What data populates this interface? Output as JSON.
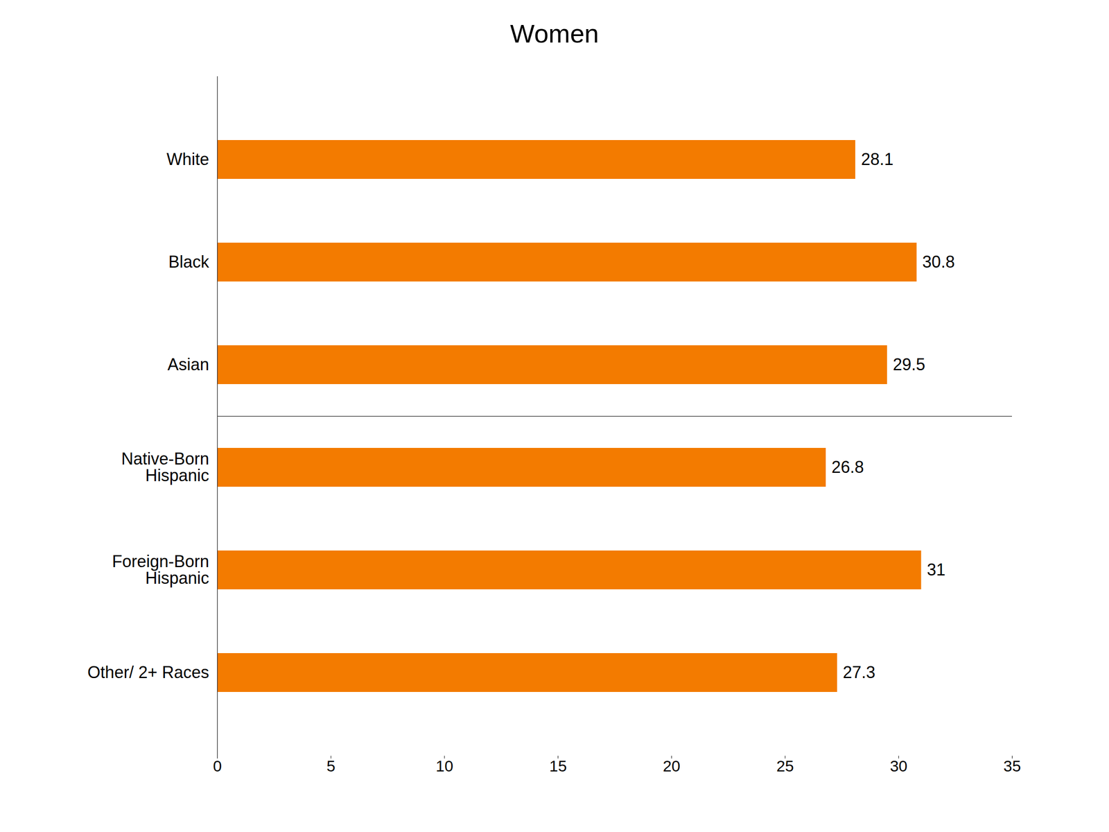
{
  "chart_data": {
    "type": "bar",
    "title": "Women",
    "orientation": "horizontal",
    "categories": [
      "White",
      "Black",
      "Asian",
      "Native-Born\nHispanic",
      "Foreign-Born\nHispanic",
      "Other/ 2+ Races"
    ],
    "values": [
      28.1,
      30.8,
      29.5,
      26.8,
      31.0,
      27.3
    ],
    "color": "#F37B00",
    "xlim": [
      0,
      35
    ],
    "xticks": [
      0,
      5,
      10,
      15,
      20,
      25,
      30,
      35
    ],
    "grid": false,
    "data_labels": true
  }
}
